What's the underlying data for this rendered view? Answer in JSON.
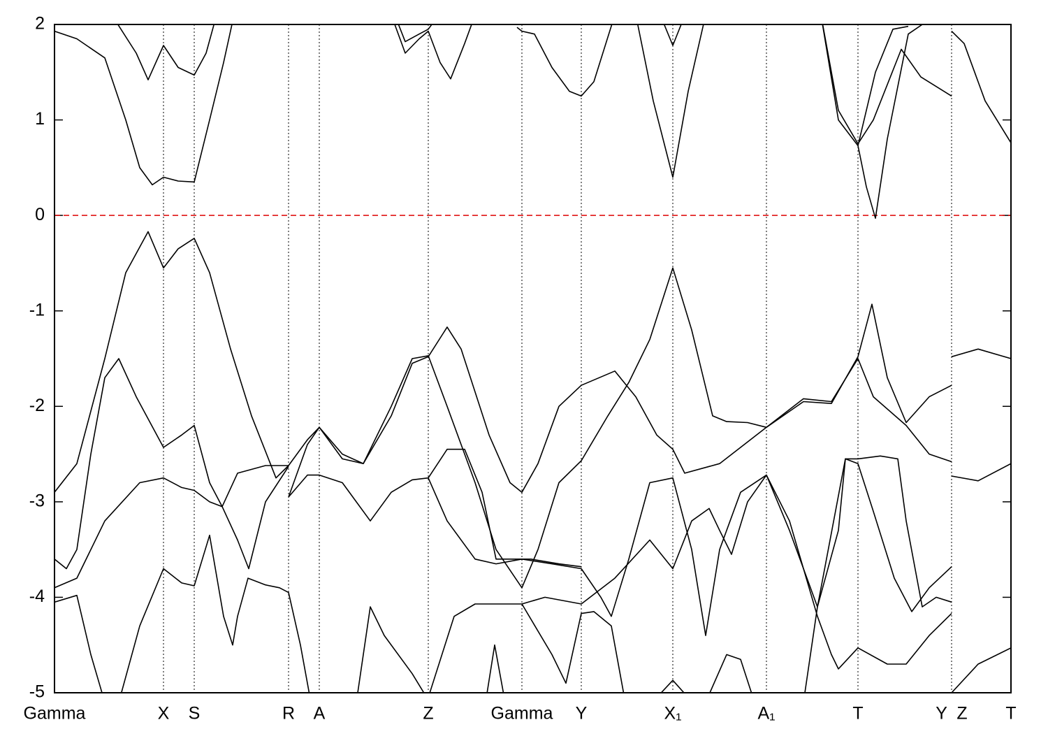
{
  "chart_data": {
    "type": "line",
    "xlim": [
      0,
      1369
    ],
    "ylim": [
      -5,
      2
    ],
    "yticks": [
      -5,
      -4,
      -3,
      -2,
      -1,
      0,
      1,
      2
    ],
    "xticks": [
      {
        "value": 0,
        "label": "Gamma"
      },
      {
        "value": 156,
        "label": "X"
      },
      {
        "value": 200,
        "label": "S"
      },
      {
        "value": 335,
        "label": "R"
      },
      {
        "value": 379,
        "label": "A"
      },
      {
        "value": 535,
        "label": "Z"
      },
      {
        "value": 669,
        "label": "Gamma"
      },
      {
        "value": 754,
        "label": "Y"
      },
      {
        "value": 885,
        "label": "X₁"
      },
      {
        "value": 1019,
        "label": "A₁"
      },
      {
        "value": 1150,
        "label": "T"
      },
      {
        "value": 1284,
        "label": "Y  Z"
      },
      {
        "value": 1369,
        "label": "T"
      }
    ],
    "grid": true,
    "reference_lines": [
      {
        "y": 0,
        "color": "#dd0000"
      }
    ],
    "series": [
      {
        "color": "#000000",
        "x": [
          0,
          32,
          72,
          102,
          122,
          140,
          156,
          177,
          200,
          222,
          242,
          257
        ],
        "values": [
          1.93,
          1.85,
          1.65,
          1.0,
          0.5,
          0.32,
          0.4,
          0.36,
          0.35,
          1.0,
          1.6,
          2.1
        ]
      },
      {
        "color": "#000000",
        "x": [
          82,
          117,
          134,
          156,
          177,
          200,
          217,
          232
        ],
        "values": [
          2.1,
          1.7,
          1.42,
          1.78,
          1.55,
          1.47,
          1.7,
          2.1
        ]
      },
      {
        "color": "#000000",
        "x": [
          482,
          502,
          522,
          535,
          552,
          567,
          587,
          602
        ],
        "values": [
          2.1,
          1.7,
          1.85,
          1.93,
          1.6,
          1.43,
          1.8,
          2.1
        ]
      },
      {
        "color": "#000000",
        "x": [
          487,
          502,
          522,
          535,
          550
        ],
        "values": [
          2.1,
          1.82,
          1.9,
          1.95,
          2.1
        ]
      },
      {
        "color": "#000000",
        "x": [
          662,
          669,
          687,
          712,
          737,
          754,
          772,
          802
        ],
        "values": [
          1.97,
          1.93,
          1.9,
          1.55,
          1.3,
          1.25,
          1.4,
          2.1
        ]
      },
      {
        "color": "#000000",
        "x": [
          832,
          857,
          885,
          907,
          932
        ],
        "values": [
          2.1,
          1.2,
          0.4,
          1.3,
          2.1
        ]
      },
      {
        "color": "#000000",
        "x": [
          867,
          885,
          897,
          905
        ],
        "values": [
          2.1,
          1.78,
          2.0,
          2.1
        ]
      },
      {
        "color": "#000000",
        "x": [
          1097,
          1122,
          1150,
          1162,
          1175,
          1192,
          1222,
          1252
        ],
        "values": [
          2.1,
          1.0,
          0.73,
          0.3,
          -0.03,
          0.8,
          1.9,
          2.05
        ]
      },
      {
        "color": "#000000",
        "x": [
          1097,
          1122,
          1150,
          1172,
          1212,
          1240,
          1284
        ],
        "values": [
          2.1,
          1.1,
          0.75,
          1.0,
          1.74,
          1.45,
          1.25
        ]
      },
      {
        "color": "#000000",
        "x": [
          1150,
          1175,
          1200,
          1222
        ],
        "values": [
          0.73,
          1.5,
          1.95,
          1.98
        ]
      },
      {
        "color": "#000000",
        "x": [
          1284,
          1302,
          1332,
          1369
        ],
        "values": [
          1.93,
          1.8,
          1.2,
          0.76
        ]
      },
      {
        "color": "#000000",
        "x": [
          0,
          32,
          72,
          102,
          134,
          156,
          177,
          200,
          222,
          252,
          282,
          317,
          335,
          362,
          379,
          412,
          442,
          482,
          512,
          535,
          562,
          582,
          622,
          652,
          669,
          692,
          722,
          754,
          802,
          832,
          862,
          885,
          902,
          952,
          1019,
          1072,
          1112,
          1150,
          1172,
          1219,
          1252,
          1284
        ],
        "values": [
          -2.9,
          -2.6,
          -1.5,
          -0.6,
          -0.17,
          -0.55,
          -0.35,
          -0.24,
          -0.6,
          -1.4,
          -2.1,
          -2.75,
          -2.62,
          -2.35,
          -2.22,
          -2.5,
          -2.6,
          -2.1,
          -1.55,
          -1.48,
          -1.17,
          -1.4,
          -2.3,
          -2.8,
          -2.9,
          -2.6,
          -2.0,
          -1.78,
          -1.63,
          -1.9,
          -2.3,
          -2.45,
          -2.7,
          -2.6,
          -2.22,
          -1.92,
          -1.95,
          -1.5,
          -1.9,
          -2.2,
          -2.5,
          -2.58
        ]
      },
      {
        "color": "#000000",
        "x": [
          1284,
          1322,
          1369
        ],
        "values": [
          -1.48,
          -1.4,
          -1.5
        ]
      },
      {
        "color": "#000000",
        "x": [
          0,
          17,
          32,
          52,
          72,
          92,
          117,
          156,
          182,
          200,
          222,
          240,
          262,
          278,
          302,
          335
        ],
        "values": [
          -3.6,
          -3.7,
          -3.5,
          -2.5,
          -1.7,
          -1.5,
          -1.9,
          -2.43,
          -2.3,
          -2.2,
          -2.8,
          -3.05,
          -3.4,
          -3.7,
          -3.0,
          -2.63
        ]
      },
      {
        "color": "#000000",
        "x": [
          335,
          362,
          379,
          412,
          442,
          482,
          512,
          535,
          562,
          602,
          632,
          669,
          692,
          722,
          754,
          792,
          822,
          852,
          885,
          912,
          942,
          962,
          992,
          1019,
          1072,
          1112,
          1150,
          1170,
          1192,
          1219,
          1252,
          1284
        ],
        "values": [
          -2.95,
          -2.4,
          -2.22,
          -2.55,
          -2.6,
          -2.0,
          -1.5,
          -1.47,
          -2.0,
          -2.8,
          -3.5,
          -3.9,
          -3.5,
          -2.8,
          -2.57,
          -2.1,
          -1.75,
          -1.3,
          -0.55,
          -1.2,
          -2.1,
          -2.16,
          -2.17,
          -2.22,
          -1.95,
          -1.97,
          -1.48,
          -0.93,
          -1.7,
          -2.17,
          -1.9,
          -1.78
        ]
      },
      {
        "color": "#000000",
        "x": [
          1284,
          1322,
          1369
        ],
        "values": [
          -2.73,
          -2.78,
          -2.6
        ]
      },
      {
        "color": "#000000",
        "x": [
          0,
          32,
          72,
          122,
          156,
          182,
          200,
          222,
          240,
          262,
          302,
          335
        ],
        "values": [
          -3.9,
          -3.8,
          -3.2,
          -2.8,
          -2.75,
          -2.85,
          -2.88,
          -3.0,
          -3.05,
          -2.7,
          -2.62,
          -2.62
        ]
      },
      {
        "color": "#000000",
        "x": [
          335,
          362,
          379,
          412,
          452,
          482,
          512,
          535,
          562,
          602,
          632,
          669,
          712,
          754,
          782,
          797,
          822,
          852,
          885,
          912,
          932,
          952,
          982,
          1019,
          1052,
          1092,
          1112,
          1122,
          1150,
          1192,
          1219,
          1252,
          1284
        ],
        "values": [
          -2.95,
          -2.72,
          -2.72,
          -2.8,
          -3.2,
          -2.9,
          -2.77,
          -2.75,
          -3.2,
          -3.6,
          -3.65,
          -3.6,
          -3.65,
          -3.7,
          -4.0,
          -4.2,
          -3.6,
          -2.8,
          -2.75,
          -3.5,
          -4.4,
          -3.5,
          -2.9,
          -2.72,
          -3.2,
          -4.2,
          -4.6,
          -4.75,
          -4.53,
          -4.7,
          -4.7,
          -4.4,
          -4.17
        ]
      },
      {
        "color": "#000000",
        "x": [
          1284,
          1322,
          1369
        ],
        "values": [
          -5.0,
          -4.7,
          -4.53
        ]
      },
      {
        "color": "#000000",
        "x": [
          0,
          32,
          52,
          72
        ],
        "values": [
          -4.05,
          -3.98,
          -4.6,
          -5.1
        ]
      },
      {
        "color": "#000000",
        "x": [
          92,
          122,
          156,
          182,
          200,
          222,
          242,
          255,
          262,
          277,
          302,
          322,
          335,
          352,
          367
        ],
        "values": [
          -5.1,
          -4.3,
          -3.7,
          -3.85,
          -3.88,
          -3.35,
          -4.2,
          -4.5,
          -4.2,
          -3.8,
          -3.87,
          -3.9,
          -3.95,
          -4.5,
          -5.1
        ]
      },
      {
        "color": "#000000",
        "x": [
          432,
          452,
          472,
          512,
          537
        ],
        "values": [
          -5.1,
          -4.1,
          -4.4,
          -4.8,
          -5.1
        ]
      },
      {
        "color": "#000000",
        "x": [
          535,
          562,
          587,
          612,
          632,
          669,
          682,
          722,
          754
        ],
        "values": [
          -2.75,
          -2.45,
          -2.45,
          -2.9,
          -3.6,
          -3.6,
          -3.6,
          -3.65,
          -3.68
        ]
      },
      {
        "color": "#000000",
        "x": [
          535,
          572,
          602,
          669,
          712,
          732,
          754,
          772,
          797,
          817
        ],
        "values": [
          -5.05,
          -4.2,
          -4.07,
          -4.07,
          -4.6,
          -4.9,
          -4.17,
          -4.15,
          -4.3,
          -5.1
        ]
      },
      {
        "color": "#000000",
        "x": [
          669,
          702,
          754,
          802,
          852,
          885,
          912,
          937,
          952,
          969,
          992,
          1019,
          1052,
          1092,
          1122,
          1132,
          1150,
          1172,
          1202,
          1227,
          1252,
          1284
        ],
        "values": [
          -4.07,
          -4.0,
          -4.07,
          -3.8,
          -3.4,
          -3.7,
          -3.2,
          -3.07,
          -3.3,
          -3.55,
          -3.0,
          -2.72,
          -3.3,
          -4.1,
          -3.3,
          -2.55,
          -2.6,
          -3.1,
          -3.8,
          -4.15,
          -3.9,
          -3.68
        ]
      },
      {
        "color": "#000000",
        "x": [
          1072,
          1092,
          1132,
          1150,
          1182,
          1207,
          1219,
          1242,
          1262,
          1284
        ],
        "values": [
          -5.1,
          -4.1,
          -2.55,
          -2.55,
          -2.52,
          -2.55,
          -3.2,
          -4.1,
          -4.0,
          -4.05
        ]
      },
      {
        "color": "#000000",
        "x": [
          862,
          885,
          907
        ],
        "values": [
          -5.05,
          -4.87,
          -5.05
        ]
      },
      {
        "color": "#000000",
        "x": [
          932,
          962,
          982,
          1002
        ],
        "values": [
          -5.1,
          -4.6,
          -4.65,
          -5.1
        ]
      },
      {
        "color": "#000000",
        "x": [
          617,
          630,
          645
        ],
        "values": [
          -5.1,
          -4.5,
          -5.1
        ]
      }
    ]
  }
}
